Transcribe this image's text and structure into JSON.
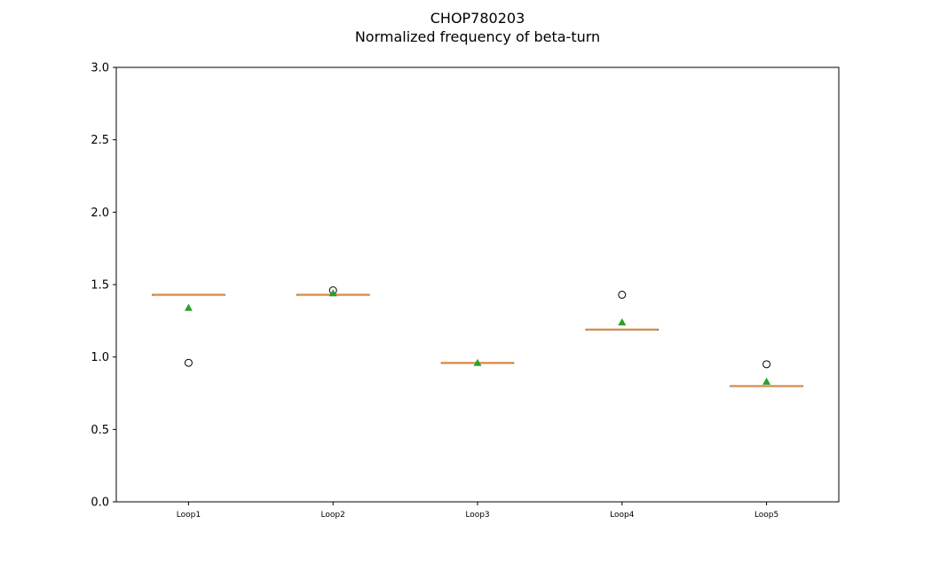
{
  "chart_data": {
    "type": "box",
    "title": "CHOP780203",
    "subtitle": "Normalized frequency of beta-turn",
    "xlabel": "",
    "ylabel": "",
    "ylim": [
      0.0,
      3.0
    ],
    "yticks": [
      "0.0",
      "0.5",
      "1.0",
      "1.5",
      "2.0",
      "2.5",
      "3.0"
    ],
    "categories": [
      "Loop1",
      "Loop2",
      "Loop3",
      "Loop4",
      "Loop5"
    ],
    "boxes": [
      {
        "q1": 1.43,
        "median": 1.43,
        "q3": 1.43,
        "whisker_low": 1.43,
        "whisker_high": 1.43,
        "mean": 1.34,
        "outliers": [
          0.96
        ]
      },
      {
        "q1": 1.43,
        "median": 1.43,
        "q3": 1.43,
        "whisker_low": 1.43,
        "whisker_high": 1.43,
        "mean": 1.44,
        "outliers": [
          1.46
        ]
      },
      {
        "q1": 0.96,
        "median": 0.96,
        "q3": 0.96,
        "whisker_low": 0.96,
        "whisker_high": 0.96,
        "mean": 0.96,
        "outliers": []
      },
      {
        "q1": 1.19,
        "median": 1.19,
        "q3": 1.19,
        "whisker_low": 1.19,
        "whisker_high": 1.19,
        "mean": 1.24,
        "outliers": [
          1.43
        ]
      },
      {
        "q1": 0.8,
        "median": 0.8,
        "q3": 0.8,
        "whisker_low": 0.8,
        "whisker_high": 0.8,
        "mean": 0.83,
        "outliers": [
          0.95
        ]
      }
    ],
    "grid": false,
    "colors": {
      "median": "#d9893f",
      "mean": "#2ca02c",
      "box": "#000000"
    }
  }
}
